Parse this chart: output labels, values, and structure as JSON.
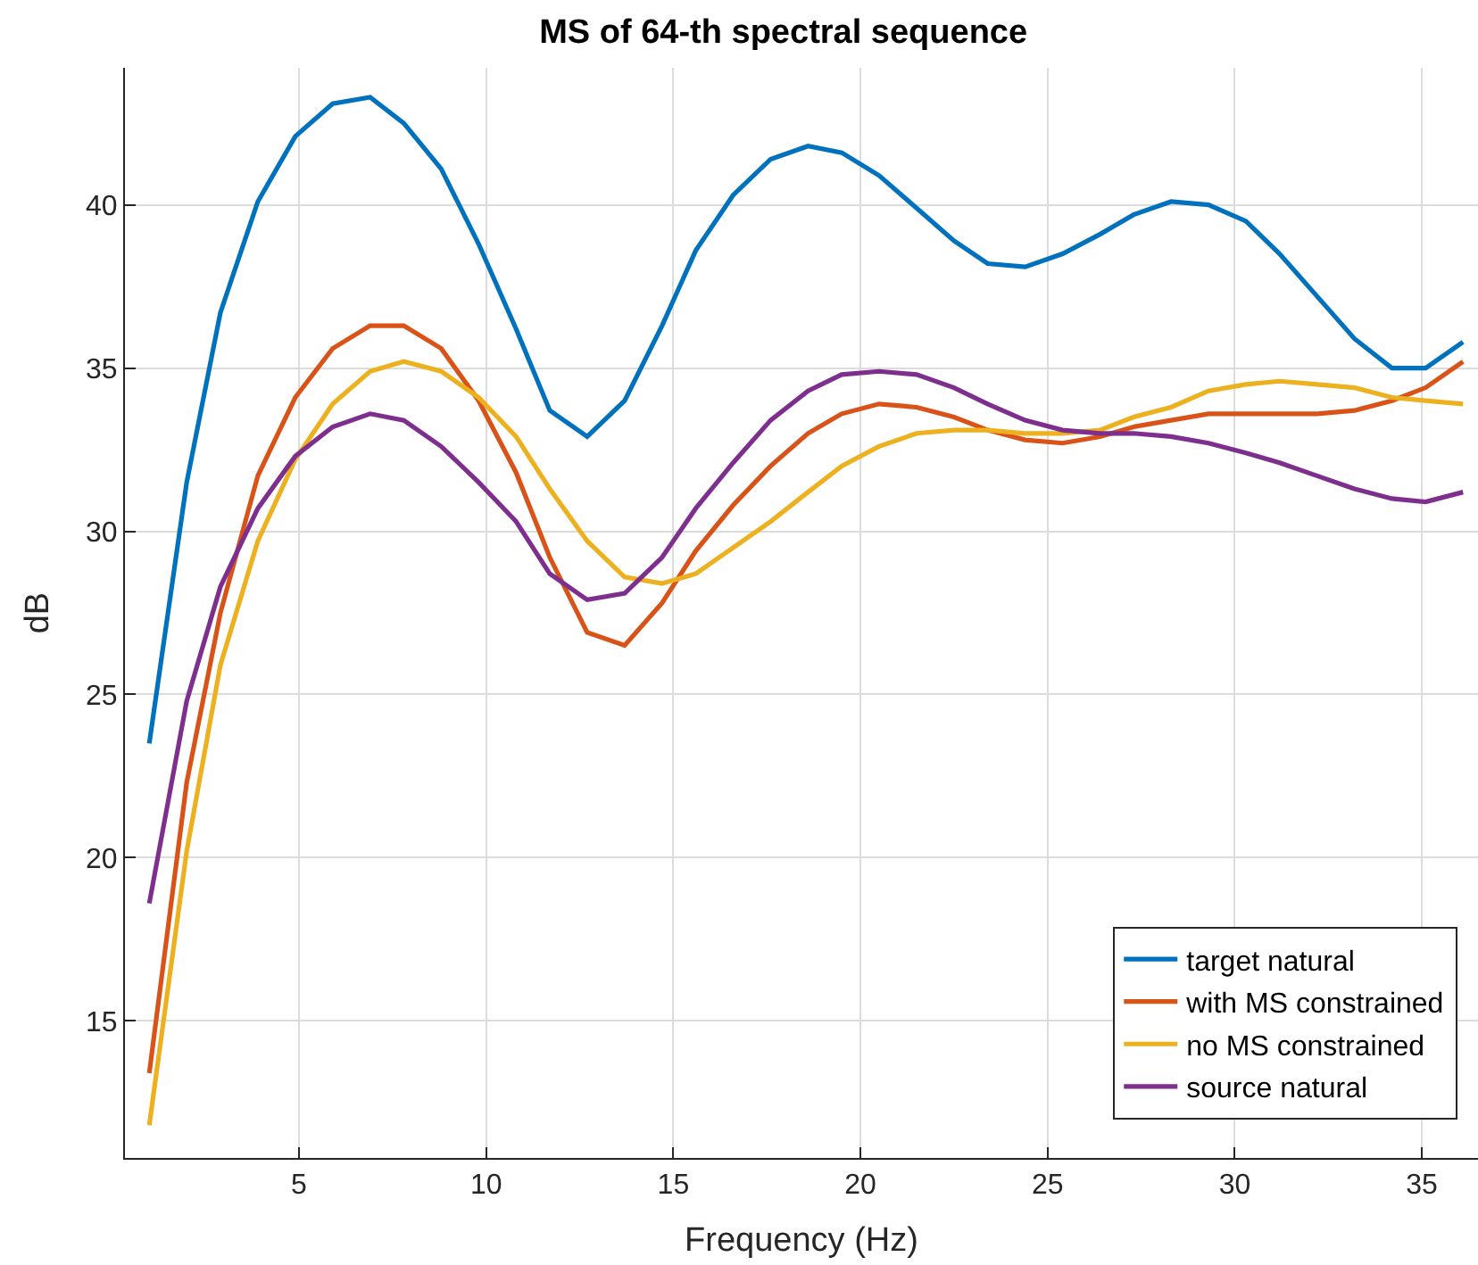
{
  "chart_data": {
    "type": "line",
    "title": "MS of 64-th spectral sequence",
    "xlabel": "Frequency (Hz)",
    "ylabel": "dB",
    "x": [
      1.0,
      2.0,
      2.9,
      3.9,
      4.9,
      5.9,
      6.9,
      7.8,
      8.8,
      9.8,
      10.8,
      11.7,
      12.7,
      13.7,
      14.7,
      15.6,
      16.6,
      17.6,
      18.6,
      19.5,
      20.5,
      21.5,
      22.5,
      23.4,
      24.4,
      25.4,
      26.4,
      27.3,
      28.3,
      29.3,
      30.3,
      31.2,
      32.2,
      33.2,
      34.2,
      35.1,
      36.1
    ],
    "series": [
      {
        "name": "target natural",
        "color": "#0072bd",
        "values": [
          23.5,
          31.5,
          36.7,
          40.1,
          42.1,
          43.1,
          43.3,
          42.5,
          41.1,
          38.8,
          36.2,
          33.7,
          32.9,
          34.0,
          36.3,
          38.6,
          40.3,
          41.4,
          41.8,
          41.6,
          40.9,
          39.9,
          38.9,
          38.2,
          38.1,
          38.5,
          39.1,
          39.7,
          40.1,
          40.0,
          39.5,
          38.5,
          37.2,
          35.9,
          35.0,
          35.0,
          35.8
        ]
      },
      {
        "name": "with MS constrained",
        "color": "#d95319",
        "values": [
          13.4,
          22.3,
          27.5,
          31.7,
          34.1,
          35.6,
          36.3,
          36.3,
          35.6,
          34.0,
          31.8,
          29.2,
          26.9,
          26.5,
          27.8,
          29.4,
          30.8,
          32.0,
          33.0,
          33.6,
          33.9,
          33.8,
          33.5,
          33.1,
          32.8,
          32.7,
          32.9,
          33.2,
          33.4,
          33.6,
          33.6,
          33.6,
          33.6,
          33.7,
          34.0,
          34.4,
          35.2
        ]
      },
      {
        "name": "no MS constrained",
        "color": "#edb120",
        "values": [
          11.8,
          20.2,
          25.9,
          29.7,
          32.2,
          33.9,
          34.9,
          35.2,
          34.9,
          34.1,
          32.9,
          31.3,
          29.7,
          28.6,
          28.4,
          28.7,
          29.5,
          30.3,
          31.2,
          32.0,
          32.6,
          33.0,
          33.1,
          33.1,
          33.0,
          33.0,
          33.1,
          33.5,
          33.8,
          34.3,
          34.5,
          34.6,
          34.5,
          34.4,
          34.1,
          34.0,
          33.9
        ]
      },
      {
        "name": "source natural",
        "color": "#7e2f8e",
        "values": [
          18.6,
          24.8,
          28.3,
          30.7,
          32.3,
          33.2,
          33.6,
          33.4,
          32.6,
          31.5,
          30.3,
          28.7,
          27.9,
          28.1,
          29.2,
          30.7,
          32.1,
          33.4,
          34.3,
          34.8,
          34.9,
          34.8,
          34.4,
          33.9,
          33.4,
          33.1,
          33.0,
          33.0,
          32.9,
          32.7,
          32.4,
          32.1,
          31.7,
          31.3,
          31.0,
          30.9,
          31.2
        ]
      }
    ],
    "xlim": [
      0.35,
      36.5
    ],
    "xticks": [
      5,
      10,
      15,
      20,
      25,
      30,
      35
    ],
    "ylim": [
      10.8,
      44.2
    ],
    "yticks": [
      15,
      20,
      25,
      30,
      35,
      40
    ],
    "grid": true,
    "legend": "bottom right",
    "marker": "none",
    "line_style": "solid"
  }
}
